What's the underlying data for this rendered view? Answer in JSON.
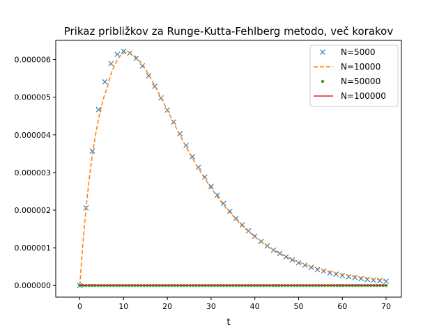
{
  "chart_data": {
    "type": "line",
    "title": "Prikaz približkov za Runge-Kutta-Fehlberg metodo, več korakov",
    "xlabel": "t",
    "ylabel": "",
    "xlim": [
      -5.5,
      73.5
    ],
    "ylim": [
      -3.1e-07,
      6.51e-06
    ],
    "xticks": [
      0,
      10,
      20,
      30,
      40,
      50,
      60,
      70
    ],
    "xtick_labels": [
      "0",
      "10",
      "20",
      "30",
      "40",
      "50",
      "60",
      "70"
    ],
    "yticks": [
      0,
      1e-06,
      2e-06,
      3e-06,
      4e-06,
      5e-06,
      6e-06
    ],
    "ytick_labels": [
      "0.000000",
      "0.000001",
      "0.000002",
      "0.000003",
      "0.000004",
      "0.000005",
      "0.000006"
    ],
    "grid": false,
    "legend_position": "top-right",
    "series": [
      {
        "name": "N=5000",
        "style": "x-markers",
        "color": "#1f77b4",
        "x": [
          0,
          1.43,
          2.86,
          4.29,
          5.71,
          7.14,
          8.57,
          10,
          11.43,
          12.86,
          14.29,
          15.71,
          17.14,
          18.57,
          20,
          21.43,
          22.86,
          24.29,
          25.71,
          27.14,
          28.57,
          30,
          31.43,
          32.86,
          34.29,
          35.71,
          37.14,
          38.57,
          40,
          41.43,
          42.86,
          44.29,
          45.71,
          47.14,
          48.57,
          50,
          51.43,
          52.86,
          54.29,
          55.71,
          57.14,
          58.57,
          60,
          61.43,
          62.86,
          64.29,
          65.71,
          67.14,
          68.57,
          70
        ],
        "y": [
          0,
          2.06e-06,
          3.57e-06,
          4.67e-06,
          5.41e-06,
          5.89e-06,
          6.14e-06,
          6.22e-06,
          6.17e-06,
          6.03e-06,
          5.83e-06,
          5.57e-06,
          5.29e-06,
          4.98e-06,
          4.66e-06,
          4.34e-06,
          4.03e-06,
          3.72e-06,
          3.42e-06,
          3.14e-06,
          2.88e-06,
          2.63e-06,
          2.4e-06,
          2.18e-06,
          1.97e-06,
          1.78e-06,
          1.61e-06,
          1.45e-06,
          1.31e-06,
          1.17e-06,
          1.05e-06,
          9.4e-07,
          8.5e-07,
          7.6e-07,
          6.8e-07,
          6e-07,
          5.4e-07,
          4.8e-07,
          4.2e-07,
          3.8e-07,
          3.3e-07,
          3e-07,
          2.6e-07,
          2.3e-07,
          2.1e-07,
          1.8e-07,
          1.6e-07,
          1.4e-07,
          1.3e-07,
          1.1e-07
        ]
      },
      {
        "name": "N=10000",
        "style": "dashed-line",
        "color": "#ff7f0e",
        "x": [
          0,
          0.7,
          1.4,
          2.1,
          2.8,
          3.5,
          4.2,
          4.9,
          5.6,
          6.3,
          7,
          7.7,
          8.4,
          9.1,
          9.8,
          10.5,
          11.2,
          11.9,
          12.6,
          13.3,
          14,
          14.7,
          15.4,
          16.1,
          16.8,
          17.5,
          18.2,
          18.9,
          19.6,
          20.3,
          21,
          21.7,
          22.4,
          23.1,
          23.8,
          24.5,
          25.2,
          25.9,
          26.6,
          27.3,
          28,
          28.7,
          29.4,
          30.1,
          30.8,
          31.5,
          32.2,
          32.9,
          33.6,
          34.3,
          35,
          35.7,
          36.4,
          37.1,
          37.8,
          38.5,
          39.2,
          39.9,
          40.6,
          41.3,
          42,
          42.7,
          43.4,
          44.1,
          44.8,
          45.5,
          46.2,
          46.9,
          47.6,
          48.3,
          49,
          49.7,
          50.4,
          51.1,
          51.8,
          52.5,
          53.2,
          53.9,
          54.6,
          55.3,
          56,
          56.7,
          57.4,
          58.1,
          58.8,
          59.5,
          60.2,
          60.9,
          61.6,
          62.3,
          63,
          63.7,
          64.4,
          65.1,
          65.8,
          66.5,
          67.2,
          67.9,
          68.6,
          69.3,
          70
        ],
        "y": [
          0,
          1.13e-06,
          2.03e-06,
          2.78e-06,
          3.42e-06,
          3.94e-06,
          4.38e-06,
          4.74e-06,
          5.04e-06,
          5.27e-06,
          5.57e-06,
          5.79e-06,
          5.95e-06,
          6.08e-06,
          6.16e-06,
          6.19e-06,
          6.18e-06,
          6.14e-06,
          6.09e-06,
          6.01e-06,
          5.92e-06,
          5.8e-06,
          5.67e-06,
          5.53e-06,
          5.38e-06,
          5.23e-06,
          5.07e-06,
          4.91e-06,
          4.75e-06,
          4.58e-06,
          4.42e-06,
          4.26e-06,
          4.1e-06,
          3.95e-06,
          3.79e-06,
          3.64e-06,
          3.5e-06,
          3.35e-06,
          3.21e-06,
          3.08e-06,
          2.94e-06,
          2.82e-06,
          2.69e-06,
          2.57e-06,
          2.46e-06,
          2.35e-06,
          2.24e-06,
          2.13e-06,
          2.03e-06,
          1.94e-06,
          1.85e-06,
          1.76e-06,
          1.67e-06,
          1.59e-06,
          1.51e-06,
          1.44e-06,
          1.37e-06,
          1.3e-06,
          1.24e-06,
          1.18e-06,
          1.12e-06,
          1.06e-06,
          1.01e-06,
          9.6e-07,
          9.1e-07,
          8.6e-07,
          8.2e-07,
          7.8e-07,
          7.4e-07,
          7e-07,
          6.7e-07,
          6.3e-07,
          6e-07,
          5.7e-07,
          5.4e-07,
          5.1e-07,
          4.9e-07,
          4.6e-07,
          4.4e-07,
          4.2e-07,
          4e-07,
          3.8e-07,
          3.6e-07,
          3.4e-07,
          3.2e-07,
          3.1e-07,
          2.9e-07,
          2.8e-07,
          2.6e-07,
          2.5e-07,
          2.4e-07,
          2.2e-07,
          2.1e-07,
          2e-07,
          1.9e-07,
          1.8e-07,
          1.7e-07,
          1.6e-07,
          1.5e-07,
          1.4e-07,
          1.3e-07
        ]
      },
      {
        "name": "N=50000",
        "style": "dot-markers",
        "color": "#2ca02c",
        "x": [
          0,
          0.7,
          1.4,
          2.1,
          2.8,
          3.5,
          4.2,
          4.9,
          5.6,
          6.3,
          7,
          7.7,
          8.4,
          9.1,
          9.8,
          10.5,
          11.2,
          11.9,
          12.6,
          13.3,
          14,
          14.7,
          15.4,
          16.1,
          16.8,
          17.5,
          18.2,
          18.9,
          19.6,
          20.3,
          21,
          21.7,
          22.4,
          23.1,
          23.8,
          24.5,
          25.2,
          25.9,
          26.6,
          27.3,
          28,
          28.7,
          29.4,
          30.1,
          30.8,
          31.5,
          32.2,
          32.9,
          33.6,
          34.3,
          35,
          35.7,
          36.4,
          37.1,
          37.8,
          38.5,
          39.2,
          39.9,
          40.6,
          41.3,
          42,
          42.7,
          43.4,
          44.1,
          44.8,
          45.5,
          46.2,
          46.9,
          47.6,
          48.3,
          49,
          49.7,
          50.4,
          51.1,
          51.8,
          52.5,
          53.2,
          53.9,
          54.6,
          55.3,
          56,
          56.7,
          57.4,
          58.1,
          58.8,
          59.5,
          60.2,
          60.9,
          61.6,
          62.3,
          63,
          63.7,
          64.4,
          65.1,
          65.8,
          66.5,
          67.2,
          67.9,
          68.6,
          69.3,
          70
        ],
        "y": [
          0,
          0,
          0,
          0,
          0,
          0,
          0,
          0,
          0,
          0,
          0,
          0,
          0,
          0,
          0,
          0,
          0,
          0,
          0,
          0,
          0,
          0,
          0,
          0,
          0,
          0,
          0,
          0,
          0,
          0,
          0,
          0,
          0,
          0,
          0,
          0,
          0,
          0,
          0,
          0,
          0,
          0,
          0,
          0,
          0,
          0,
          0,
          0,
          0,
          0,
          0,
          0,
          0,
          0,
          0,
          0,
          0,
          0,
          0,
          0,
          0,
          0,
          0,
          0,
          0,
          0,
          0,
          0,
          0,
          0,
          0,
          0,
          0,
          0,
          0,
          0,
          0,
          0,
          0,
          0,
          0,
          0,
          0,
          0,
          0,
          0,
          0,
          0,
          0,
          0,
          0,
          0,
          0,
          0,
          0,
          0,
          0,
          0,
          0,
          0,
          0
        ]
      },
      {
        "name": "N=100000",
        "style": "solid-line",
        "color": "#d62728",
        "x": [
          0,
          70
        ],
        "y": [
          0,
          0
        ]
      }
    ]
  }
}
